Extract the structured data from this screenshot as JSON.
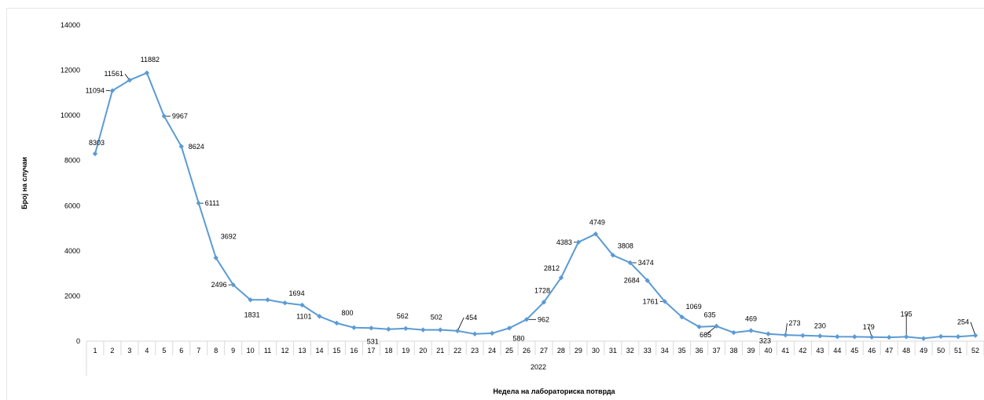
{
  "chart_data": {
    "type": "line",
    "title": "",
    "xlabel": "Недела на лабораториска потврда",
    "ylabel": "Број на случаи",
    "year_label": "2022",
    "ylim": [
      0,
      14000
    ],
    "y_ticks": [
      0,
      2000,
      4000,
      6000,
      8000,
      10000,
      12000,
      14000
    ],
    "grid": false,
    "legend": "none",
    "line_color": "#5B9BD5",
    "categories": [
      "1",
      "2",
      "3",
      "4",
      "5",
      "6",
      "7",
      "8",
      "9",
      "10",
      "11",
      "12",
      "13",
      "14",
      "15",
      "16",
      "17",
      "18",
      "19",
      "20",
      "21",
      "22",
      "23",
      "24",
      "25",
      "26",
      "27",
      "28",
      "29",
      "30",
      "31",
      "32",
      "33",
      "34",
      "35",
      "36",
      "37",
      "38",
      "39",
      "40",
      "41",
      "42",
      "43",
      "44",
      "45",
      "46",
      "47",
      "48",
      "49",
      "50",
      "51",
      "52"
    ],
    "values": [
      8303,
      11094,
      11561,
      11882,
      9967,
      8624,
      6111,
      3692,
      2496,
      1831,
      1831,
      1694,
      1600,
      1101,
      800,
      600,
      580,
      531,
      562,
      500,
      502,
      454,
      320,
      350,
      580,
      962,
      1728,
      2812,
      4383,
      4749,
      3808,
      3474,
      2684,
      1761,
      1069,
      635,
      665,
      380,
      469,
      323,
      273,
      250,
      230,
      200,
      195,
      179,
      170,
      195,
      120,
      210,
      200,
      254
    ],
    "data_labels": [
      {
        "index": 0,
        "text": "8303"
      },
      {
        "index": 1,
        "text": "11094"
      },
      {
        "index": 2,
        "text": "11561"
      },
      {
        "index": 3,
        "text": "11882"
      },
      {
        "index": 4,
        "text": "9967"
      },
      {
        "index": 5,
        "text": "8624"
      },
      {
        "index": 6,
        "text": "6111"
      },
      {
        "index": 7,
        "text": "3692"
      },
      {
        "index": 8,
        "text": "2496"
      },
      {
        "index": 9,
        "text": "1831"
      },
      {
        "index": 11,
        "text": "1694"
      },
      {
        "index": 13,
        "text": "1101"
      },
      {
        "index": 14,
        "text": "800"
      },
      {
        "index": 17,
        "text": "531"
      },
      {
        "index": 18,
        "text": "562"
      },
      {
        "index": 20,
        "text": "502"
      },
      {
        "index": 21,
        "text": "454"
      },
      {
        "index": 24,
        "text": "580"
      },
      {
        "index": 25,
        "text": "962"
      },
      {
        "index": 26,
        "text": "1728"
      },
      {
        "index": 27,
        "text": "2812"
      },
      {
        "index": 28,
        "text": "4383"
      },
      {
        "index": 29,
        "text": "4749"
      },
      {
        "index": 30,
        "text": "3808"
      },
      {
        "index": 31,
        "text": "3474"
      },
      {
        "index": 32,
        "text": "2684"
      },
      {
        "index": 33,
        "text": "1761"
      },
      {
        "index": 34,
        "text": "1069"
      },
      {
        "index": 35,
        "text": "635"
      },
      {
        "index": 36,
        "text": "665"
      },
      {
        "index": 38,
        "text": "469"
      },
      {
        "index": 39,
        "text": "323"
      },
      {
        "index": 40,
        "text": "273"
      },
      {
        "index": 42,
        "text": "230"
      },
      {
        "index": 45,
        "text": "179"
      },
      {
        "index": 47,
        "text": "195"
      },
      {
        "index": 51,
        "text": "254"
      }
    ]
  }
}
